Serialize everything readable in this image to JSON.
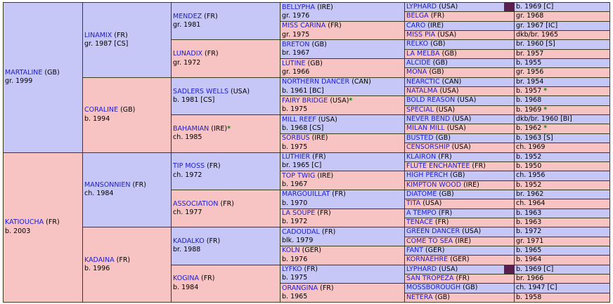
{
  "pedigree": [
    {
      "id": "gen1-sire",
      "gen": 1,
      "sex": "m",
      "rowspan": 16,
      "name": "MARTALINE",
      "country": "(GB)",
      "info": "gr. 1999"
    },
    {
      "id": "gen1-dam",
      "gen": 1,
      "sex": "f",
      "rowspan": 16,
      "name": "KATIOUCHA",
      "country": "(FR)",
      "info": "b. 2003"
    },
    {
      "id": "gen2-1",
      "gen": 2,
      "sex": "m",
      "rowspan": 8,
      "name": "LINAMIX",
      "country": "(FR)",
      "info": "gr. 1987 [CS]"
    },
    {
      "id": "gen2-2",
      "gen": 2,
      "sex": "f",
      "rowspan": 8,
      "name": "CORALINE",
      "country": "(GB)",
      "info": "b. 1994"
    },
    {
      "id": "gen2-3",
      "gen": 2,
      "sex": "m",
      "rowspan": 8,
      "name": "MANSONNIEN",
      "country": "(FR)",
      "info": "ch. 1984"
    },
    {
      "id": "gen2-4",
      "gen": 2,
      "sex": "f",
      "rowspan": 8,
      "name": "KADAINA",
      "country": "(FR)",
      "info": "b. 1996"
    },
    {
      "id": "gen3-1",
      "gen": 3,
      "sex": "m",
      "rowspan": 4,
      "name": "MENDEZ",
      "country": "(FR)",
      "info": "gr. 1981"
    },
    {
      "id": "gen3-2",
      "gen": 3,
      "sex": "f",
      "rowspan": 4,
      "name": "LUNADIX",
      "country": "(FR)",
      "info": "gr. 1972"
    },
    {
      "id": "gen3-3",
      "gen": 3,
      "sex": "m",
      "rowspan": 4,
      "name": "SADLERS WELLS",
      "country": "(USA)",
      "info": "b. 1981 [CS]"
    },
    {
      "id": "gen3-4",
      "gen": 3,
      "sex": "f",
      "rowspan": 4,
      "name": "BAHAMIAN",
      "country": "(IRE)",
      "star": "*",
      "info": "ch. 1985"
    },
    {
      "id": "gen3-5",
      "gen": 3,
      "sex": "m",
      "rowspan": 4,
      "name": "TIP MOSS",
      "country": "(FR)",
      "info": "ch. 1972"
    },
    {
      "id": "gen3-6",
      "gen": 3,
      "sex": "f",
      "rowspan": 4,
      "name": "ASSOCIATION",
      "country": "(FR)",
      "info": "ch. 1977"
    },
    {
      "id": "gen3-7",
      "gen": 3,
      "sex": "m",
      "rowspan": 4,
      "name": "KADALKO",
      "country": "(FR)",
      "info": "br. 1988"
    },
    {
      "id": "gen3-8",
      "gen": 3,
      "sex": "f",
      "rowspan": 4,
      "name": "KOGINA",
      "country": "(FR)",
      "info": "b. 1984"
    },
    {
      "id": "gen4-1",
      "gen": 4,
      "sex": "m",
      "rowspan": 2,
      "name": "BELLYPHA",
      "country": "(IRE)",
      "info": "gr. 1976"
    },
    {
      "id": "gen4-2",
      "gen": 4,
      "sex": "f",
      "rowspan": 2,
      "name": "MISS CARINA",
      "country": "(FR)",
      "info": "gr. 1975"
    },
    {
      "id": "gen4-3",
      "gen": 4,
      "sex": "m",
      "rowspan": 2,
      "name": "BRETON",
      "country": "(GB)",
      "info": "br. 1967"
    },
    {
      "id": "gen4-4",
      "gen": 4,
      "sex": "f",
      "rowspan": 2,
      "name": "LUTINE",
      "country": "(GB)",
      "info": "gr. 1966"
    },
    {
      "id": "gen4-5",
      "gen": 4,
      "sex": "m",
      "rowspan": 2,
      "name": "NORTHERN DANCER",
      "country": "(CAN)",
      "info": "b. 1961 [BC]"
    },
    {
      "id": "gen4-6",
      "gen": 4,
      "sex": "f",
      "rowspan": 2,
      "name": "FAIRY BRIDGE",
      "country": "(USA)",
      "star": "*",
      "info": "b. 1975"
    },
    {
      "id": "gen4-7",
      "gen": 4,
      "sex": "m",
      "rowspan": 2,
      "name": "MILL REEF",
      "country": "(USA)",
      "info": "b. 1968 [CS]"
    },
    {
      "id": "gen4-8",
      "gen": 4,
      "sex": "f",
      "rowspan": 2,
      "name": "SORBUS",
      "country": "(IRE)",
      "info": "b. 1975"
    },
    {
      "id": "gen4-9",
      "gen": 4,
      "sex": "m",
      "rowspan": 2,
      "name": "LUTHIER",
      "country": "(FR)",
      "info": "br. 1965 [C]"
    },
    {
      "id": "gen4-10",
      "gen": 4,
      "sex": "f",
      "rowspan": 2,
      "name": "TOP TWIG",
      "country": "(IRE)",
      "info": "b. 1967"
    },
    {
      "id": "gen4-11",
      "gen": 4,
      "sex": "m",
      "rowspan": 2,
      "name": "MARGOUILLAT",
      "country": "(FR)",
      "info": "b. 1970"
    },
    {
      "id": "gen4-12",
      "gen": 4,
      "sex": "f",
      "rowspan": 2,
      "name": "LA SOUPE",
      "country": "(FR)",
      "info": "b. 1972"
    },
    {
      "id": "gen4-13",
      "gen": 4,
      "sex": "m",
      "rowspan": 2,
      "name": "CADOUDAL",
      "country": "(FR)",
      "info": "blk. 1979"
    },
    {
      "id": "gen4-14",
      "gen": 4,
      "sex": "f",
      "rowspan": 2,
      "name": "KOLN",
      "country": "(GER)",
      "info": "b. 1976"
    },
    {
      "id": "gen4-15",
      "gen": 4,
      "sex": "m",
      "rowspan": 2,
      "name": "LYFKO",
      "country": "(FR)",
      "info": "b. 1975"
    },
    {
      "id": "gen4-16",
      "gen": 4,
      "sex": "f",
      "rowspan": 2,
      "name": "ORANGINA",
      "country": "(FR)",
      "info": "b. 1965"
    },
    {
      "id": "gen5-1",
      "gen": 5,
      "sex": "m",
      "name": "LYPHARD",
      "country": "(USA)",
      "info": "b. 1969 [C]",
      "swatch": true
    },
    {
      "id": "gen5-2",
      "gen": 5,
      "sex": "f",
      "name": "BELGA",
      "country": "(FR)",
      "info": "gr. 1968"
    },
    {
      "id": "gen5-3",
      "gen": 5,
      "sex": "m",
      "name": "CARO",
      "country": "(IRE)",
      "info": "gr. 1967 [IC]"
    },
    {
      "id": "gen5-4",
      "gen": 5,
      "sex": "f",
      "name": "MISS PIA",
      "country": "(USA)",
      "info": "dkb/br. 1965"
    },
    {
      "id": "gen5-5",
      "gen": 5,
      "sex": "m",
      "name": "RELKO",
      "country": "(GB)",
      "info": "br. 1960 [S]"
    },
    {
      "id": "gen5-6",
      "gen": 5,
      "sex": "f",
      "name": "LA MELBA",
      "country": "(GB)",
      "info": "br. 1957"
    },
    {
      "id": "gen5-7",
      "gen": 5,
      "sex": "m",
      "name": "ALCIDE",
      "country": "(GB)",
      "info": "b. 1955"
    },
    {
      "id": "gen5-8",
      "gen": 5,
      "sex": "f",
      "name": "MONA",
      "country": "(GB)",
      "info": "gr. 1956"
    },
    {
      "id": "gen5-9",
      "gen": 5,
      "sex": "m",
      "name": "NEARCTIC",
      "country": "(CAN)",
      "info": "br. 1954"
    },
    {
      "id": "gen5-10",
      "gen": 5,
      "sex": "f",
      "name": "NATALMA",
      "country": "(USA)",
      "info": "b. 1957",
      "star": "*"
    },
    {
      "id": "gen5-11",
      "gen": 5,
      "sex": "m",
      "name": "BOLD REASON",
      "country": "(USA)",
      "info": "b. 1968"
    },
    {
      "id": "gen5-12",
      "gen": 5,
      "sex": "f",
      "name": "SPECIAL",
      "country": "(USA)",
      "info": "b. 1969",
      "star": "*"
    },
    {
      "id": "gen5-13",
      "gen": 5,
      "sex": "m",
      "name": "NEVER BEND",
      "country": "(USA)",
      "info": "dkb/br. 1960 [BI]"
    },
    {
      "id": "gen5-14",
      "gen": 5,
      "sex": "f",
      "name": "MILAN MILL",
      "country": "(USA)",
      "info": "b. 1962",
      "star": "*"
    },
    {
      "id": "gen5-15",
      "gen": 5,
      "sex": "m",
      "name": "BUSTED",
      "country": "(GB)",
      "info": "b. 1963 [S]"
    },
    {
      "id": "gen5-16",
      "gen": 5,
      "sex": "f",
      "name": "CENSORSHIP",
      "country": "(USA)",
      "info": "ch. 1969"
    },
    {
      "id": "gen5-17",
      "gen": 5,
      "sex": "m",
      "name": "KLAIRON",
      "country": "(FR)",
      "info": "b. 1952"
    },
    {
      "id": "gen5-18",
      "gen": 5,
      "sex": "f",
      "name": "FLUTE ENCHANTEE",
      "country": "(FR)",
      "info": "b. 1950"
    },
    {
      "id": "gen5-19",
      "gen": 5,
      "sex": "m",
      "name": "HIGH PERCH",
      "country": "(GB)",
      "info": "ch. 1956"
    },
    {
      "id": "gen5-20",
      "gen": 5,
      "sex": "f",
      "name": "KIMPTON WOOD",
      "country": "(IRE)",
      "info": "b. 1952"
    },
    {
      "id": "gen5-21",
      "gen": 5,
      "sex": "m",
      "name": "DIATOME",
      "country": "(GB)",
      "info": "br. 1962"
    },
    {
      "id": "gen5-22",
      "gen": 5,
      "sex": "f",
      "name": "TITA",
      "country": "(USA)",
      "info": "ch. 1964"
    },
    {
      "id": "gen5-23",
      "gen": 5,
      "sex": "m",
      "name": "A TEMPO",
      "country": "(FR)",
      "info": "b. 1963"
    },
    {
      "id": "gen5-24",
      "gen": 5,
      "sex": "f",
      "name": "TENACE",
      "country": "(FR)",
      "info": "b. 1963"
    },
    {
      "id": "gen5-25",
      "gen": 5,
      "sex": "m",
      "name": "GREEN DANCER",
      "country": "(USA)",
      "info": "b. 1972"
    },
    {
      "id": "gen5-26",
      "gen": 5,
      "sex": "f",
      "name": "COME TO SEA",
      "country": "(IRE)",
      "info": "gr. 1971"
    },
    {
      "id": "gen5-27",
      "gen": 5,
      "sex": "m",
      "name": "FANT",
      "country": "(GER)",
      "info": "b. 1965"
    },
    {
      "id": "gen5-28",
      "gen": 5,
      "sex": "f",
      "name": "KORNAEHRE",
      "country": "(GER)",
      "info": "b. 1964"
    },
    {
      "id": "gen5-29",
      "gen": 5,
      "sex": "m",
      "name": "LYPHARD",
      "country": "(USA)",
      "info": "b. 1969 [C]",
      "swatch": true
    },
    {
      "id": "gen5-30",
      "gen": 5,
      "sex": "f",
      "name": "SAN TROPEZA",
      "country": "(FR)",
      "info": "br. 1966"
    },
    {
      "id": "gen5-31",
      "gen": 5,
      "sex": "m",
      "name": "MOSSBOROUGH",
      "country": "(GB)",
      "info": "ch. 1947 [C]"
    },
    {
      "id": "gen5-32",
      "gen": 5,
      "sex": "f",
      "name": "NETERA",
      "country": "(GB)",
      "info": "b. 1958"
    }
  ],
  "colors": {
    "male_bg": "#c6c6f7",
    "female_bg": "#f7c3c3",
    "name_link": "#2020cc",
    "dosage_star": "#0a8a0a",
    "swatch": "#5a1f4f"
  }
}
